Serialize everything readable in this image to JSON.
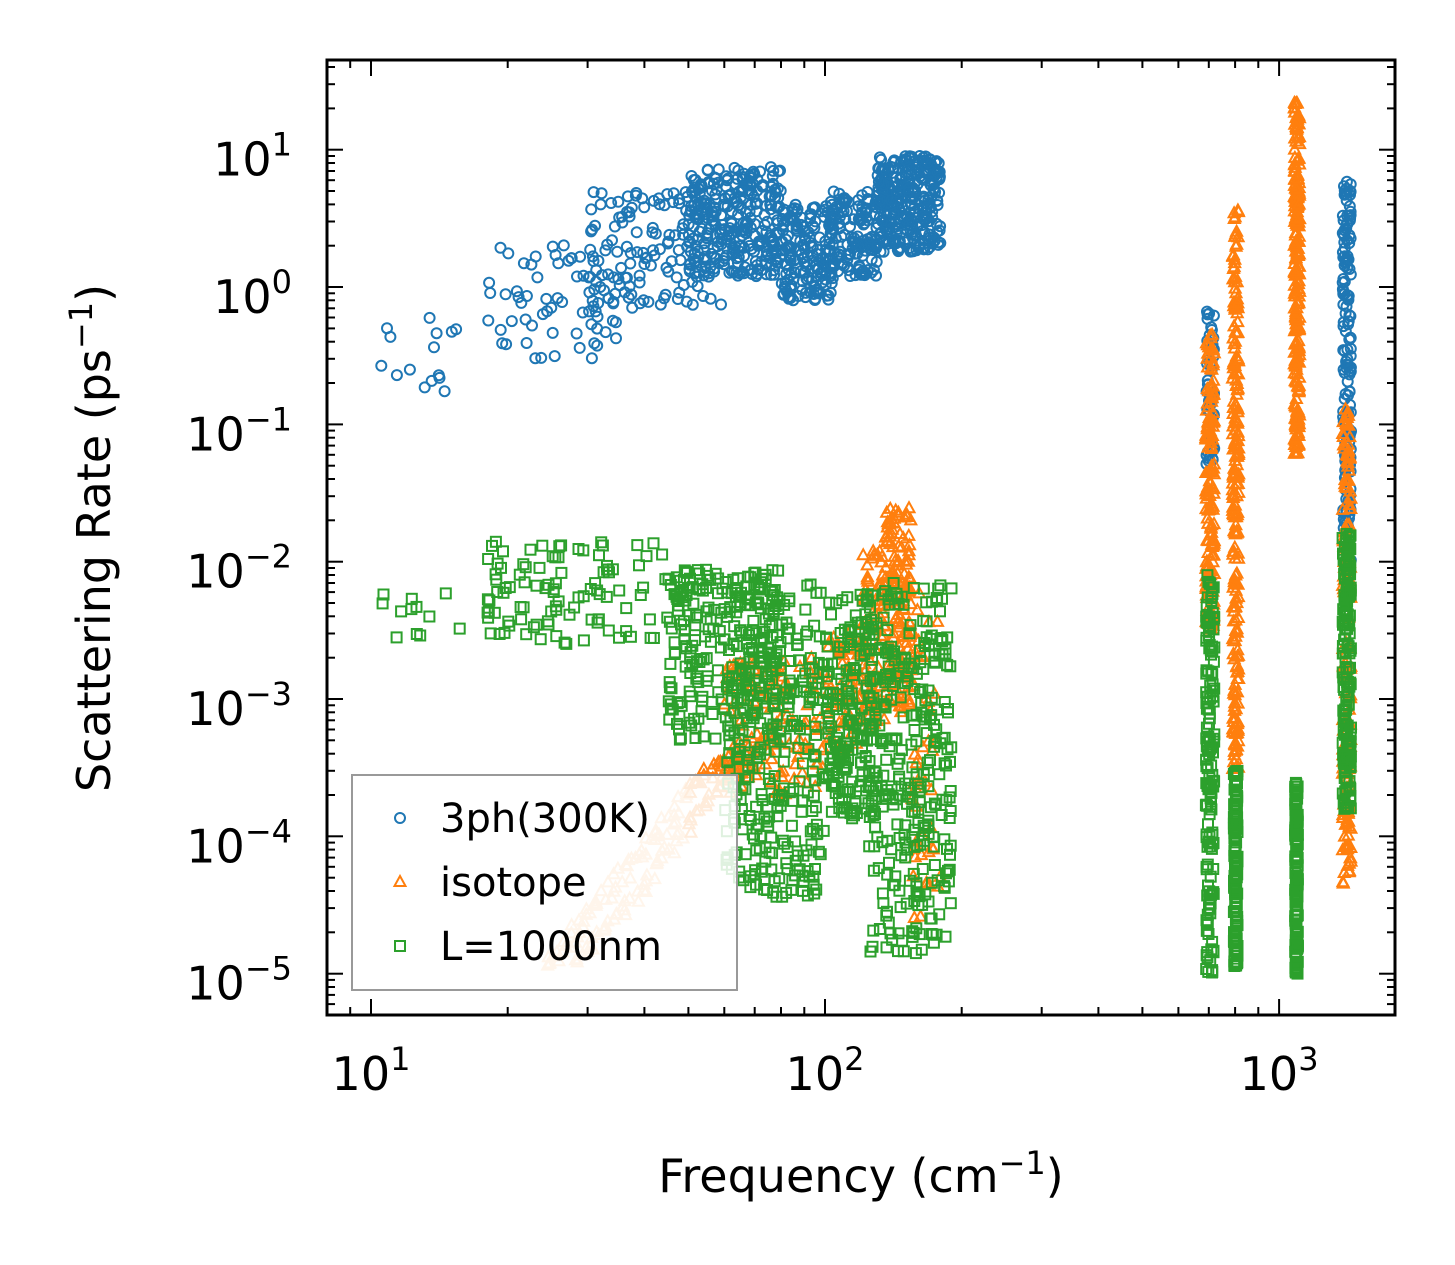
{
  "chart_data": {
    "type": "scatter",
    "xscale": "log",
    "yscale": "log",
    "xlim": [
      8,
      1800
    ],
    "ylim": [
      5e-06,
      45
    ],
    "xlabel": {
      "main": "Frequency (cm",
      "sup": "−1",
      "end": ")"
    },
    "ylabel": {
      "main": "Scattering Rate (ps",
      "sup": "−1",
      "end": ")"
    },
    "x_ticks": [
      {
        "value": 10,
        "base": "10",
        "exp": "1"
      },
      {
        "value": 100,
        "base": "10",
        "exp": "2"
      },
      {
        "value": 1000,
        "base": "10",
        "exp": "3"
      }
    ],
    "y_ticks": [
      {
        "value": 10,
        "base": "10",
        "exp": "1"
      },
      {
        "value": 1,
        "base": "10",
        "exp": "0"
      },
      {
        "value": 0.1,
        "base": "10",
        "exp": "−1"
      },
      {
        "value": 0.01,
        "base": "10",
        "exp": "−2"
      },
      {
        "value": 0.001,
        "base": "10",
        "exp": "−3"
      },
      {
        "value": 0.0001,
        "base": "10",
        "exp": "−4"
      },
      {
        "value": 1e-05,
        "base": "10",
        "exp": "−5"
      }
    ],
    "legend": {
      "placement": "lower-left"
    },
    "series": [
      {
        "name": "3ph(300K)",
        "marker": "circle",
        "color": "#1f77b4",
        "clusters": [
          {
            "x": [
              10,
              16
            ],
            "y": [
              0.13,
              0.6
            ],
            "n": 15
          },
          {
            "x": [
              18,
              40
            ],
            "y": [
              0.3,
              2.2
            ],
            "n": 70
          },
          {
            "x": [
              30,
              60
            ],
            "y": [
              0.7,
              5
            ],
            "n": 130
          },
          {
            "x": [
              50,
              80
            ],
            "y": [
              1.2,
              7.5
            ],
            "n": 280
          },
          {
            "x": [
              80,
              105
            ],
            "y": [
              0.8,
              4
            ],
            "n": 180
          },
          {
            "x": [
              100,
              130
            ],
            "y": [
              1.2,
              5
            ],
            "n": 130
          },
          {
            "x": [
              130,
              180
            ],
            "y": [
              1.8,
              9
            ],
            "n": 300
          },
          {
            "x": [
              690,
              720
            ],
            "y": [
              0.05,
              0.7
            ],
            "n": 50
          },
          {
            "x": [
              1380,
              1440
            ],
            "y": [
              0.01,
              6
            ],
            "n": 160
          }
        ]
      },
      {
        "name": "isotope",
        "marker": "triangle",
        "color": "#ff7f0e",
        "light_color": "#ffbb78",
        "lines": [
          {
            "x": [
              24,
              60
            ],
            "y": [
              1.1e-05,
              0.0004
            ],
            "n": 80,
            "light_below_x": 50
          },
          {
            "x": [
              28,
              80
            ],
            "y": [
              1.1e-05,
              0.0008
            ],
            "n": 80,
            "light_below_x": 50
          }
        ],
        "clusters": [
          {
            "x": [
              60,
              100
            ],
            "y": [
              0.0002,
              0.002
            ],
            "n": 120
          },
          {
            "x": [
              100,
              125
            ],
            "y": [
              0.0004,
              0.003
            ],
            "n": 70
          },
          {
            "x": [
              120,
              135
            ],
            "y": [
              0.0006,
              0.012
            ],
            "n": 80
          },
          {
            "x": [
              135,
              155
            ],
            "y": [
              0.0008,
              0.025
            ],
            "n": 150
          },
          {
            "x": [
              155,
              180
            ],
            "y": [
              2.5e-05,
              0.006
            ],
            "n": 50
          },
          {
            "x": [
              690,
              720
            ],
            "y": [
              0.003,
              0.45
            ],
            "n": 150
          },
          {
            "x": [
              790,
              815
            ],
            "y": [
              0.0003,
              4
            ],
            "n": 220
          },
          {
            "x": [
              1080,
              1110
            ],
            "y": [
              0.06,
              22
            ],
            "n": 240
          },
          {
            "x": [
              1380,
              1440
            ],
            "y": [
              4.5e-05,
              0.13
            ],
            "n": 170
          }
        ]
      },
      {
        "name": "L=1000nm",
        "marker": "square",
        "color": "#2ca02c",
        "clusters": [
          {
            "x": [
              10,
              16
            ],
            "y": [
              0.0027,
              0.006
            ],
            "n": 12
          },
          {
            "x": [
              18,
              50
            ],
            "y": [
              0.0025,
              0.014
            ],
            "n": 110
          },
          {
            "x": [
              45,
              80
            ],
            "y": [
              0.0005,
              0.009
            ],
            "n": 220
          },
          {
            "x": [
              60,
              100
            ],
            "y": [
              3.5e-05,
              0.007
            ],
            "n": 300
          },
          {
            "x": [
              100,
              130
            ],
            "y": [
              0.00013,
              0.006
            ],
            "n": 200
          },
          {
            "x": [
              125,
              190
            ],
            "y": [
              1.3e-05,
              0.007
            ],
            "n": 300
          },
          {
            "x": [
              690,
              720
            ],
            "y": [
              1e-05,
              0.008
            ],
            "n": 150
          },
          {
            "x": [
              795,
              810
            ],
            "y": [
              1.1e-05,
              0.0003
            ],
            "n": 130
          },
          {
            "x": [
              1085,
              1100
            ],
            "y": [
              1e-05,
              0.00025
            ],
            "n": 150
          },
          {
            "x": [
              1380,
              1440
            ],
            "y": [
              0.00015,
              0.016
            ],
            "n": 180
          }
        ]
      }
    ]
  }
}
